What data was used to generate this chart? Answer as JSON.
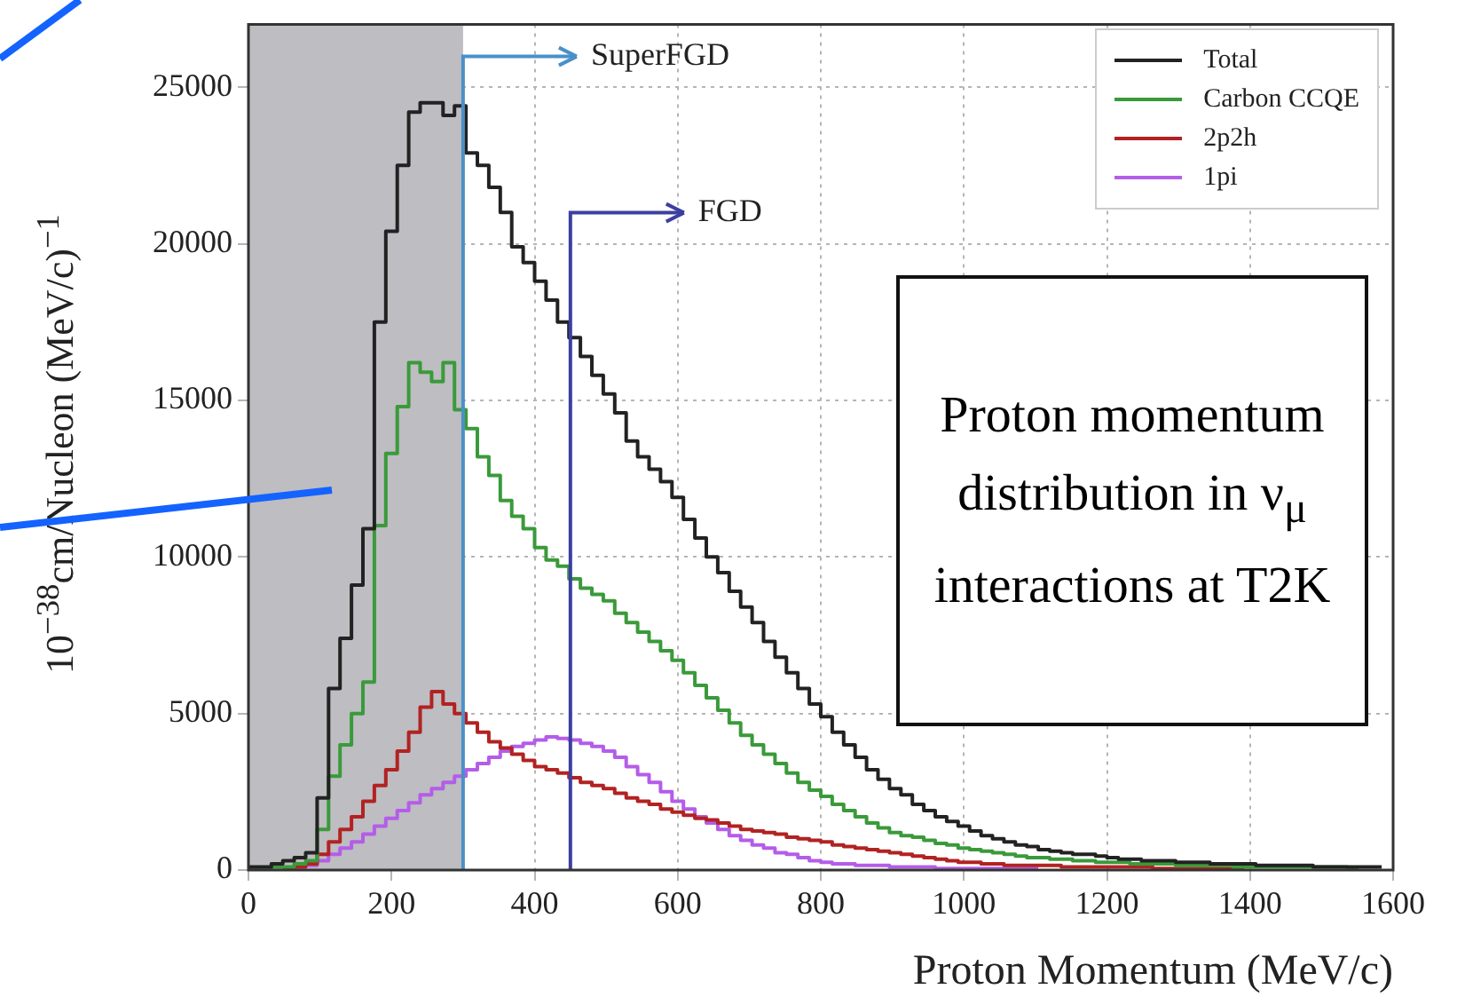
{
  "chart_data": {
    "type": "step",
    "xlabel": "Proton Momentum (MeV/c)",
    "ylabel": "10$^{−38}$cm/Nucleon (MeV/c)$^{−1}$",
    "x": [
      0,
      16,
      32,
      48,
      64,
      80,
      96,
      112,
      128,
      144,
      160,
      176,
      192,
      208,
      224,
      240,
      256,
      272,
      288,
      304,
      320,
      336,
      352,
      368,
      384,
      400,
      416,
      432,
      448,
      464,
      480,
      496,
      512,
      528,
      544,
      560,
      576,
      592,
      608,
      624,
      640,
      656,
      672,
      688,
      704,
      720,
      736,
      752,
      768,
      784,
      800,
      816,
      832,
      848,
      864,
      880,
      896,
      912,
      928,
      944,
      960,
      976,
      992,
      1008,
      1024,
      1040,
      1056,
      1072,
      1088,
      1104,
      1120,
      1136,
      1152,
      1168,
      1184,
      1200,
      1216,
      1232,
      1248,
      1264,
      1280,
      1296,
      1312,
      1328,
      1344,
      1360,
      1376,
      1392,
      1408,
      1424,
      1440,
      1456,
      1472,
      1488,
      1504,
      1520,
      1536,
      1552,
      1568,
      1584
    ],
    "series": [
      {
        "name": "Total",
        "color": "#222222",
        "values": [
          50,
          100,
          100,
          200,
          300,
          400,
          550,
          2300,
          5800,
          7400,
          9100,
          10900,
          17500,
          20400,
          22500,
          24200,
          24500,
          24500,
          24100,
          24400,
          22900,
          22500,
          21800,
          21000,
          19900,
          19400,
          18800,
          18200,
          17500,
          17000,
          16400,
          15800,
          15200,
          14600,
          13700,
          13200,
          12800,
          12400,
          11900,
          11200,
          10600,
          10000,
          9500,
          8900,
          8400,
          7900,
          7300,
          6800,
          6300,
          5800,
          5300,
          4900,
          4400,
          4000,
          3600,
          3200,
          2900,
          2600,
          2400,
          2100,
          1900,
          1700,
          1550,
          1400,
          1250,
          1100,
          1000,
          900,
          800,
          750,
          650,
          600,
          550,
          500,
          500,
          450,
          400,
          350,
          350,
          300,
          300,
          300,
          250,
          250,
          250,
          200,
          200,
          200,
          200,
          150,
          150,
          150,
          150,
          150,
          100,
          100,
          100,
          100,
          100,
          100
        ]
      },
      {
        "name": "Carbon CCQE",
        "color": "#3a9a3a",
        "values": [
          0,
          50,
          50,
          100,
          100,
          200,
          300,
          1300,
          3000,
          4000,
          5000,
          6000,
          11000,
          13300,
          14800,
          16200,
          15900,
          15600,
          16200,
          14700,
          14100,
          13200,
          12600,
          11800,
          11300,
          10900,
          10300,
          9900,
          9700,
          9300,
          9000,
          8800,
          8600,
          8200,
          7900,
          7600,
          7300,
          7000,
          6700,
          6300,
          5900,
          5500,
          5100,
          4700,
          4300,
          4000,
          3700,
          3400,
          3100,
          2800,
          2550,
          2350,
          2100,
          1900,
          1700,
          1500,
          1350,
          1200,
          1100,
          1050,
          950,
          850,
          800,
          700,
          650,
          600,
          550,
          500,
          450,
          400,
          400,
          350,
          350,
          300,
          300,
          250,
          250,
          250,
          200,
          200,
          200,
          200,
          150,
          150,
          150,
          150,
          150,
          100,
          100,
          100,
          100,
          100,
          100,
          100,
          100,
          100,
          100,
          50,
          null,
          null
        ]
      },
      {
        "name": "2p2h",
        "color": "#b22222",
        "values": [
          null,
          null,
          null,
          50,
          50,
          100,
          200,
          500,
          900,
          1300,
          1700,
          2200,
          2700,
          3200,
          3800,
          4400,
          5200,
          5700,
          5300,
          5000,
          4700,
          4400,
          4100,
          3900,
          3700,
          3500,
          3300,
          3200,
          3100,
          2950,
          2800,
          2700,
          2600,
          2450,
          2300,
          2200,
          2100,
          1950,
          1850,
          1750,
          1650,
          1600,
          1500,
          1400,
          1300,
          1250,
          1200,
          1150,
          1050,
          1000,
          950,
          900,
          800,
          750,
          700,
          650,
          600,
          550,
          500,
          450,
          400,
          350,
          300,
          250,
          250,
          200,
          200,
          150,
          150,
          150,
          150,
          150,
          100,
          100,
          100,
          100,
          100,
          100,
          100,
          100,
          50,
          50,
          50,
          50,
          50,
          50,
          50,
          50,
          null,
          null,
          null,
          null,
          null,
          null,
          null,
          null,
          null,
          null,
          null,
          null
        ]
      },
      {
        "name": "1pi",
        "color": "#b45de8",
        "values": [
          null,
          null,
          null,
          null,
          50,
          100,
          150,
          300,
          500,
          700,
          900,
          1150,
          1400,
          1650,
          1900,
          2150,
          2400,
          2600,
          2800,
          3000,
          3200,
          3400,
          3600,
          3800,
          3950,
          4050,
          4150,
          4250,
          4200,
          4150,
          4050,
          3950,
          3800,
          3600,
          3300,
          3050,
          2800,
          2500,
          2200,
          1950,
          1700,
          1500,
          1300,
          1100,
          950,
          800,
          700,
          550,
          500,
          400,
          300,
          250,
          200,
          200,
          150,
          150,
          150,
          100,
          100,
          100,
          100,
          50,
          50,
          50,
          50,
          50,
          50,
          50,
          50,
          50,
          null,
          null,
          null,
          null,
          null,
          null,
          null,
          null,
          null,
          null,
          null,
          null,
          null,
          null,
          null,
          null,
          null,
          null,
          null,
          null,
          null,
          null,
          null,
          null,
          null,
          null,
          null,
          null,
          null,
          null
        ]
      }
    ],
    "xlim": [
      0,
      1600
    ],
    "xticks": [
      0,
      200,
      400,
      600,
      800,
      1000,
      1200,
      1400,
      1600
    ],
    "ylim": [
      0,
      27000
    ],
    "yticks": [
      0,
      5000,
      10000,
      15000,
      20000,
      25000
    ],
    "grid": true,
    "legend": "top right",
    "bands": [
      {
        "axis": "x",
        "from": 0,
        "to": 300,
        "color": "#bdbdc2"
      }
    ],
    "ref_lines": [
      {
        "axis": "x",
        "value": 300,
        "label": "SuperFGD",
        "color": "#4a90c8"
      },
      {
        "axis": "x",
        "value": 450,
        "label": "FGD",
        "color": "#3b3fa0"
      }
    ],
    "annotations": [
      "Proton momentum distribution in ν$_{μ}$ interactions at T2K"
    ]
  }
}
